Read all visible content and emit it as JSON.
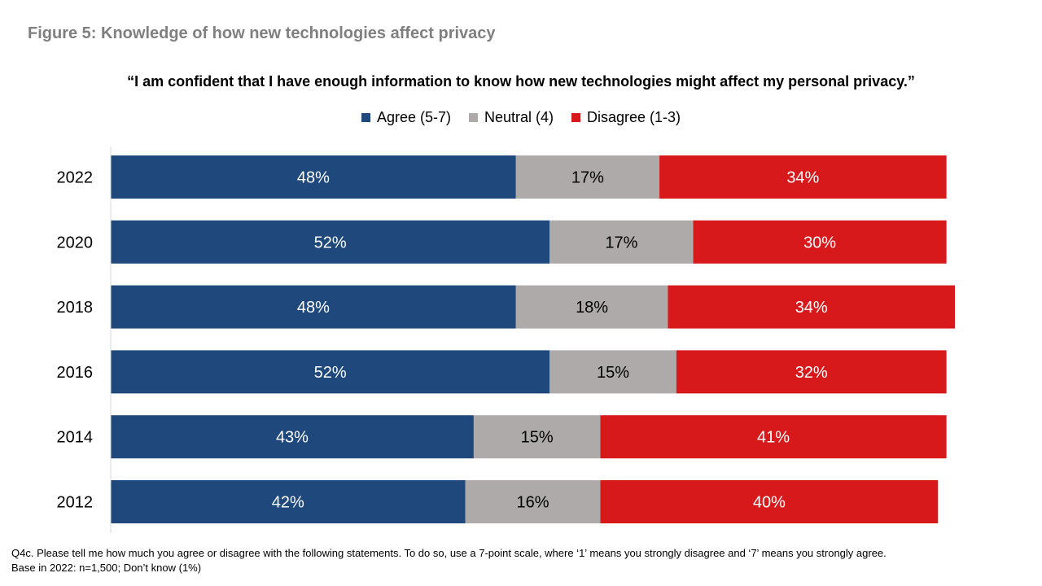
{
  "title": "Figure 5: Knowledge of how new technologies affect privacy",
  "subtitle": "“I am confident that I have enough information to know how new technologies might affect my personal privacy.”",
  "colors": {
    "agree": "#1f497d",
    "neutral": "#aeaaaa",
    "disagree": "#d7191c",
    "title": "#7f7f7f"
  },
  "chart_data": {
    "type": "bar",
    "orientation": "horizontal",
    "stacked": true,
    "title": "“I am confident that I have enough information to know how new technologies might affect my personal privacy.”",
    "categories": [
      "2022",
      "2020",
      "2018",
      "2016",
      "2014",
      "2012"
    ],
    "series": [
      {
        "name": "Agree (5-7)",
        "values": [
          48,
          52,
          48,
          52,
          43,
          42
        ],
        "labels": [
          "48%",
          "52%",
          "48%",
          "52%",
          "43%",
          "42%"
        ]
      },
      {
        "name": "Neutral (4)",
        "values": [
          17,
          17,
          18,
          15,
          15,
          16
        ],
        "labels": [
          "17%",
          "17%",
          "18%",
          "15%",
          "15%",
          "16%"
        ]
      },
      {
        "name": "Disagree (1-3)",
        "values": [
          34,
          30,
          34,
          32,
          41,
          40
        ],
        "labels": [
          "34%",
          "30%",
          "34%",
          "32%",
          "41%",
          "40%"
        ]
      }
    ],
    "xlim": [
      0,
      100
    ],
    "legend_position": "top",
    "grid": false
  },
  "footnote": {
    "line1": "Q4c. Please tell me how much you agree or disagree with the following statements. To do so, use a 7-point scale, where ‘1’ means you strongly disagree and ‘7’ means you strongly agree.",
    "line2": "Base in 2022: n=1,500; Don’t know (1%)"
  }
}
